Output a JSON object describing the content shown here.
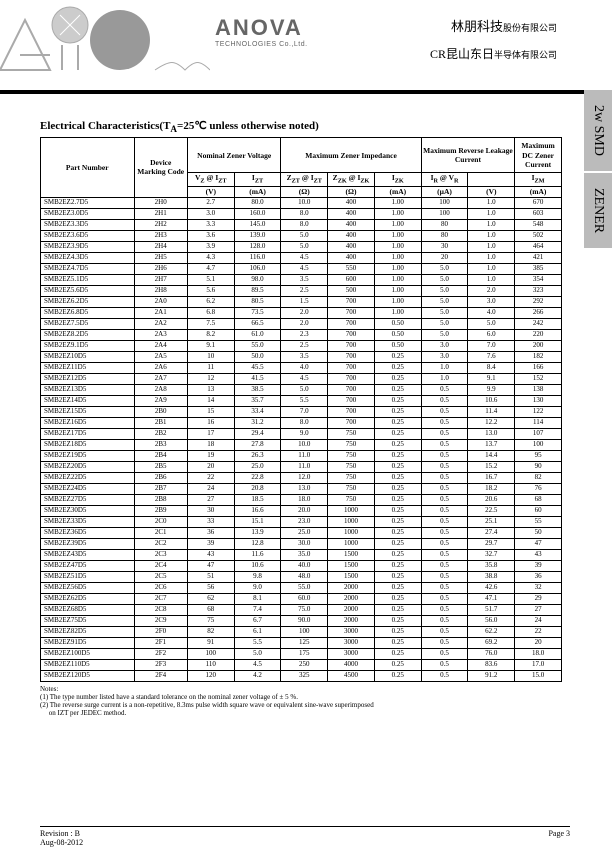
{
  "header": {
    "logo": "ANOVA",
    "logo_sub": "TECHNOLOGIES Co.,Ltd.",
    "cn1_main": "林朋科技",
    "cn1_sub": "股份有限公司",
    "cn2_pre": "CR",
    "cn2_main": "昆山东日",
    "cn2_sub": "半导体有限公司"
  },
  "tabs": {
    "t1": "2w SMD",
    "t2": "ZENER"
  },
  "title": "Electrical Characteristics(T",
  "title_sub": "A",
  "title_rest": "=25℃ unless otherwise noted)",
  "headers": {
    "pn": "Part Number",
    "dmc": "Device Marking Code",
    "nzv": "Nominal Zener Voltage",
    "mzi": "Maximum Zener Impedance",
    "mrlc": "Maximum Reverse Leakage Current",
    "mdczc": "Maximum DC Zener Current",
    "vz": "V",
    "vz_s": "Z",
    "at": " @ I",
    "izt_s": "ZT",
    "izt": "I",
    "zzt": "Z",
    "zzk": "Z",
    "izk": "I",
    "ir": "I",
    "vr": "V",
    "izm": "I",
    "u_v": "(V)",
    "u_ma": "(mA)",
    "u_ohm": "(Ω)",
    "u_ua": "(µA)"
  },
  "rows": [
    [
      "SMB2EZ2.7D5",
      "2H0",
      "2.7",
      "80.0",
      "10.0",
      "400",
      "1.00",
      "100",
      "1.0",
      "670"
    ],
    [
      "SMB2EZ3.0D5",
      "2H1",
      "3.0",
      "160.0",
      "8.0",
      "400",
      "1.00",
      "100",
      "1.0",
      "603"
    ],
    [
      "SMB2EZ3.3D5",
      "2H2",
      "3.3",
      "145.0",
      "8.0",
      "400",
      "1.00",
      "80",
      "1.0",
      "548"
    ],
    [
      "SMB2EZ3.6D5",
      "2H3",
      "3.6",
      "139.0",
      "5.0",
      "400",
      "1.00",
      "80",
      "1.0",
      "502"
    ],
    [
      "SMB2EZ3.9D5",
      "2H4",
      "3.9",
      "128.0",
      "5.0",
      "400",
      "1.00",
      "30",
      "1.0",
      "464"
    ],
    [
      "SMB2EZ4.3D5",
      "2H5",
      "4.3",
      "116.0",
      "4.5",
      "400",
      "1.00",
      "20",
      "1.0",
      "421"
    ],
    [
      "SMB2EZ4.7D5",
      "2H6",
      "4.7",
      "106.0",
      "4.5",
      "550",
      "1.00",
      "5.0",
      "1.0",
      "385"
    ],
    [
      "SMB2EZ5.1D5",
      "2H7",
      "5.1",
      "98.0",
      "3.5",
      "600",
      "1.00",
      "5.0",
      "1.0",
      "354"
    ],
    [
      "SMB2EZ5.6D5",
      "2H8",
      "5.6",
      "89.5",
      "2.5",
      "500",
      "1.00",
      "5.0",
      "2.0",
      "323"
    ],
    [
      "SMB2EZ6.2D5",
      "2A0",
      "6.2",
      "80.5",
      "1.5",
      "700",
      "1.00",
      "5.0",
      "3.0",
      "292"
    ],
    [
      "SMB2EZ6.8D5",
      "2A1",
      "6.8",
      "73.5",
      "2.0",
      "700",
      "1.00",
      "5.0",
      "4.0",
      "266"
    ],
    [
      "SMB2EZ7.5D5",
      "2A2",
      "7.5",
      "66.5",
      "2.0",
      "700",
      "0.50",
      "5.0",
      "5.0",
      "242"
    ],
    [
      "SMB2EZ8.2D5",
      "2A3",
      "8.2",
      "61.0",
      "2.3",
      "700",
      "0.50",
      "5.0",
      "6.0",
      "220"
    ],
    [
      "SMB2EZ9.1D5",
      "2A4",
      "9.1",
      "55.0",
      "2.5",
      "700",
      "0.50",
      "3.0",
      "7.0",
      "200"
    ],
    [
      "SMB2EZ10D5",
      "2A5",
      "10",
      "50.0",
      "3.5",
      "700",
      "0.25",
      "3.0",
      "7.6",
      "182"
    ],
    [
      "SMB2EZ11D5",
      "2A6",
      "11",
      "45.5",
      "4.0",
      "700",
      "0.25",
      "1.0",
      "8.4",
      "166"
    ],
    [
      "SMB2EZ12D5",
      "2A7",
      "12",
      "41.5",
      "4.5",
      "700",
      "0.25",
      "1.0",
      "9.1",
      "152"
    ],
    [
      "SMB2EZ13D5",
      "2A8",
      "13",
      "38.5",
      "5.0",
      "700",
      "0.25",
      "0.5",
      "9.9",
      "138"
    ],
    [
      "SMB2EZ14D5",
      "2A9",
      "14",
      "35.7",
      "5.5",
      "700",
      "0.25",
      "0.5",
      "10.6",
      "130"
    ],
    [
      "SMB2EZ15D5",
      "2B0",
      "15",
      "33.4",
      "7.0",
      "700",
      "0.25",
      "0.5",
      "11.4",
      "122"
    ],
    [
      "SMB2EZ16D5",
      "2B1",
      "16",
      "31.2",
      "8.0",
      "700",
      "0.25",
      "0.5",
      "12.2",
      "114"
    ],
    [
      "SMB2EZ17D5",
      "2B2",
      "17",
      "29.4",
      "9.0",
      "750",
      "0.25",
      "0.5",
      "13.0",
      "107"
    ],
    [
      "SMB2EZ18D5",
      "2B3",
      "18",
      "27.8",
      "10.0",
      "750",
      "0.25",
      "0.5",
      "13.7",
      "100"
    ],
    [
      "SMB2EZ19D5",
      "2B4",
      "19",
      "26.3",
      "11.0",
      "750",
      "0.25",
      "0.5",
      "14.4",
      "95"
    ],
    [
      "SMB2EZ20D5",
      "2B5",
      "20",
      "25.0",
      "11.0",
      "750",
      "0.25",
      "0.5",
      "15.2",
      "90"
    ],
    [
      "SMB2EZ22D5",
      "2B6",
      "22",
      "22.8",
      "12.0",
      "750",
      "0.25",
      "0.5",
      "16.7",
      "82"
    ],
    [
      "SMB2EZ24D5",
      "2B7",
      "24",
      "20.8",
      "13.0",
      "750",
      "0.25",
      "0.5",
      "18.2",
      "76"
    ],
    [
      "SMB2EZ27D5",
      "2B8",
      "27",
      "18.5",
      "18.0",
      "750",
      "0.25",
      "0.5",
      "20.6",
      "68"
    ],
    [
      "SMB2EZ30D5",
      "2B9",
      "30",
      "16.6",
      "20.0",
      "1000",
      "0.25",
      "0.5",
      "22.5",
      "60"
    ],
    [
      "SMB2EZ33D5",
      "2C0",
      "33",
      "15.1",
      "23.0",
      "1000",
      "0.25",
      "0.5",
      "25.1",
      "55"
    ],
    [
      "SMB2EZ36D5",
      "2C1",
      "36",
      "13.9",
      "25.0",
      "1000",
      "0.25",
      "0.5",
      "27.4",
      "50"
    ],
    [
      "SMB2EZ39D5",
      "2C2",
      "39",
      "12.8",
      "30.0",
      "1000",
      "0.25",
      "0.5",
      "29.7",
      "47"
    ],
    [
      "SMB2EZ43D5",
      "2C3",
      "43",
      "11.6",
      "35.0",
      "1500",
      "0.25",
      "0.5",
      "32.7",
      "43"
    ],
    [
      "SMB2EZ47D5",
      "2C4",
      "47",
      "10.6",
      "40.0",
      "1500",
      "0.25",
      "0.5",
      "35.8",
      "39"
    ],
    [
      "SMB2EZ51D5",
      "2C5",
      "51",
      "9.8",
      "48.0",
      "1500",
      "0.25",
      "0.5",
      "38.8",
      "36"
    ],
    [
      "SMB2EZ56D5",
      "2C6",
      "56",
      "9.0",
      "55.0",
      "2000",
      "0.25",
      "0.5",
      "42.6",
      "32"
    ],
    [
      "SMB2EZ62D5",
      "2C7",
      "62",
      "8.1",
      "60.0",
      "2000",
      "0.25",
      "0.5",
      "47.1",
      "29"
    ],
    [
      "SMB2EZ68D5",
      "2C8",
      "68",
      "7.4",
      "75.0",
      "2000",
      "0.25",
      "0.5",
      "51.7",
      "27"
    ],
    [
      "SMB2EZ75D5",
      "2C9",
      "75",
      "6.7",
      "90.0",
      "2000",
      "0.25",
      "0.5",
      "56.0",
      "24"
    ],
    [
      "SMB2EZ82D5",
      "2F0",
      "82",
      "6.1",
      "100",
      "3000",
      "0.25",
      "0.5",
      "62.2",
      "22"
    ],
    [
      "SMB2EZ91D5",
      "2F1",
      "91",
      "5.5",
      "125",
      "3000",
      "0.25",
      "0.5",
      "69.2",
      "20"
    ],
    [
      "SMB2EZ100D5",
      "2F2",
      "100",
      "5.0",
      "175",
      "3000",
      "0.25",
      "0.5",
      "76.0",
      "18.0"
    ],
    [
      "SMB2EZ110D5",
      "2F3",
      "110",
      "4.5",
      "250",
      "4000",
      "0.25",
      "0.5",
      "83.6",
      "17.0"
    ],
    [
      "SMB2EZ120D5",
      "2F4",
      "120",
      "4.2",
      "325",
      "4500",
      "0.25",
      "0.5",
      "91.2",
      "15.0"
    ]
  ],
  "notes": {
    "h": "Notes:",
    "n1": "(1) The type number listed have a standard tolerance on the nominal zener voltage of ± 5 %.",
    "n2a": "(2) The reverse surge current is a non-repetitive, 8.3ms pulse width square wave or equivalent sine-wave superimposed",
    "n2b": "     on IZT per JEDEC method."
  },
  "footer": {
    "rev": "Revision : B",
    "date": "Aug-08-2012",
    "page": "Page 3"
  }
}
